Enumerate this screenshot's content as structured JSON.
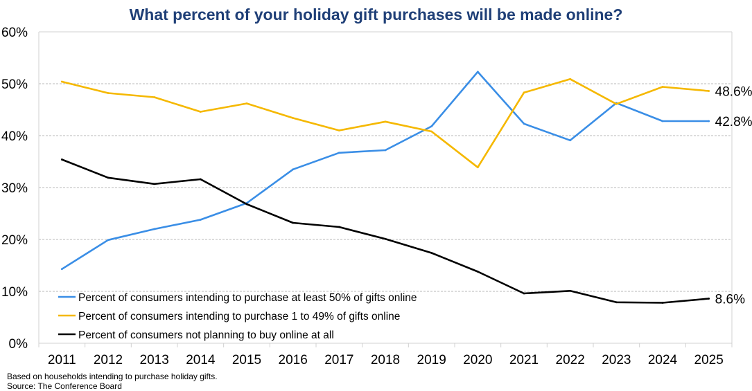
{
  "chart_data": {
    "type": "line",
    "title": "What percent of your holiday gift purchases will be made online?",
    "xlabel": "",
    "ylabel": "",
    "x": [
      "2011",
      "2012",
      "2013",
      "2014",
      "2015",
      "2016",
      "2017",
      "2018",
      "2019",
      "2020",
      "2021",
      "2022",
      "2023",
      "2024",
      "2025"
    ],
    "ylim": [
      0,
      60
    ],
    "yticks": [
      "0%",
      "10%",
      "20%",
      "30%",
      "40%",
      "50%",
      "60%"
    ],
    "grid": true,
    "legend_position": "bottom-left",
    "series": [
      {
        "name": "Percent of consumers intending to purchase at least 50% of gifts online",
        "color": "#3a8ee6",
        "values": [
          14.3,
          19.9,
          22.0,
          23.8,
          27.0,
          33.5,
          36.7,
          37.2,
          41.8,
          52.3,
          42.3,
          39.1,
          46.3,
          42.8,
          42.8
        ],
        "end_label": "42.8%"
      },
      {
        "name": "Percent of consumers intending to purchase 1 to 49% of gifts online",
        "color": "#f5b800",
        "values": [
          50.4,
          48.2,
          47.4,
          44.6,
          46.2,
          43.4,
          41.0,
          42.7,
          40.8,
          33.9,
          48.3,
          50.9,
          46.1,
          49.4,
          48.6
        ],
        "end_label": "48.6%"
      },
      {
        "name": "Percent of consumers not planning to buy online at all",
        "color": "#000000",
        "values": [
          35.4,
          31.9,
          30.7,
          31.6,
          26.8,
          23.2,
          22.4,
          20.1,
          17.4,
          13.8,
          9.6,
          10.1,
          7.9,
          7.8,
          8.6
        ],
        "end_label": "8.6%"
      }
    ]
  },
  "footnotes": {
    "basis": "Based on households intending to purchase holiday gifts.",
    "source": "Source: The Conference Board"
  }
}
